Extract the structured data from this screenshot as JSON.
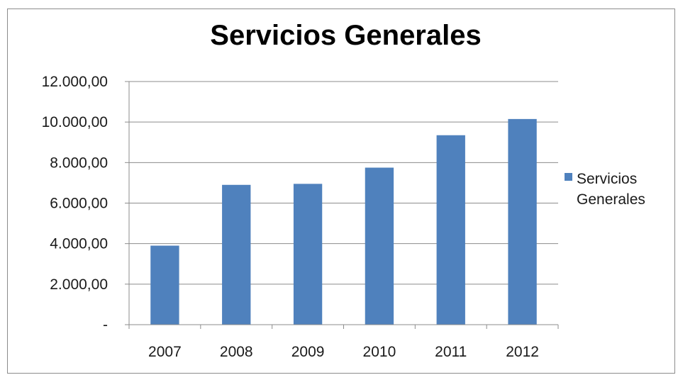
{
  "chart_data": {
    "type": "bar",
    "title": "Servicios Generales",
    "xlabel": "",
    "ylabel": "",
    "categories": [
      "2007",
      "2008",
      "2009",
      "2010",
      "2011",
      "2012"
    ],
    "series": [
      {
        "name": "Servicios Generales",
        "values": [
          3900,
          6900,
          6950,
          7750,
          9350,
          10150
        ]
      }
    ],
    "ylim": [
      0,
      12000
    ],
    "y_ticks": [
      0,
      2000,
      4000,
      6000,
      8000,
      10000,
      12000
    ],
    "y_tick_labels": [
      "-",
      "2.000,00",
      "4.000,00",
      "6.000,00",
      "8.000,00",
      "10.000,00",
      "12.000,00"
    ],
    "grid": true,
    "legend_position": "right",
    "colors": {
      "bar": "#4f81bd",
      "grid": "#8c8c8c",
      "axis": "#8c8c8c"
    }
  }
}
